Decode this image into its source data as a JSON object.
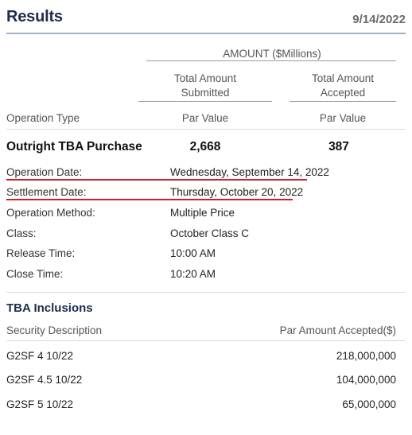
{
  "header": {
    "title": "Results",
    "date": "9/14/2022"
  },
  "columns": {
    "group_header": "AMOUNT ($Millions)",
    "submitted_line1": "Total Amount",
    "submitted_line2": "Submitted",
    "accepted_line1": "Total Amount",
    "accepted_line2": "Accepted",
    "op_type_label": "Operation Type",
    "par_value_1": "Par Value",
    "par_value_2": "Par Value"
  },
  "summary": {
    "operation": "Outright TBA Purchase",
    "submitted": "2,668",
    "accepted": "387"
  },
  "details": [
    {
      "label": "Operation Date:",
      "value": "Wednesday, September 14, 2022"
    },
    {
      "label": "Settlement Date:",
      "value": "Thursday, October 20, 2022"
    },
    {
      "label": "Operation Method:",
      "value": "Multiple Price"
    },
    {
      "label": "Class:",
      "value": "October Class C"
    },
    {
      "label": "Release Time:",
      "value": "10:00 AM"
    },
    {
      "label": "Close Time:",
      "value": "10:20 AM"
    }
  ],
  "annotations": {
    "underline_color": "#cc1f2d"
  },
  "inclusions": {
    "title": "TBA Inclusions",
    "col_security": "Security Description",
    "col_amount": "Par Amount Accepted($)",
    "rows": [
      {
        "security": "G2SF 4 10/22",
        "amount": "218,000,000"
      },
      {
        "security": "G2SF 4.5 10/22",
        "amount": "104,000,000"
      },
      {
        "security": "G2SF 5 10/22",
        "amount": "65,000,000"
      }
    ]
  }
}
